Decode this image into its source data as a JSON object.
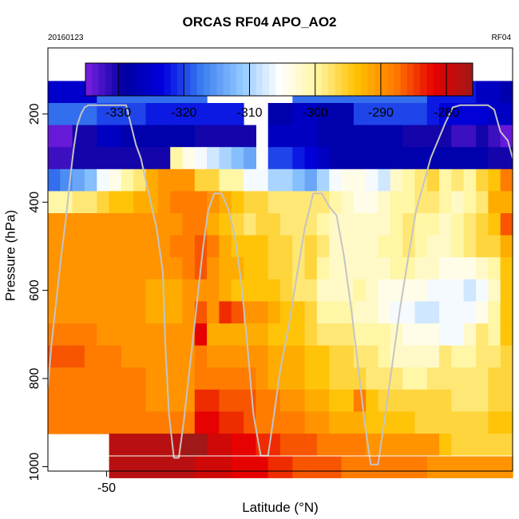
{
  "title": "ORCAS RF04 APO_AO2",
  "date": "20160123",
  "flight": "RF04",
  "colors": {
    "scale": [
      "#7b1fe3",
      "#0000a0",
      "#0000e0",
      "#3a7df0",
      "#8ec6ff",
      "#ffffff",
      "#fff5a0",
      "#ffc000",
      "#ff7a00",
      "#e60000",
      "#a01818"
    ]
  },
  "chart_data": {
    "type": "heatmap",
    "title": "ORCAS RF04 APO_AO2",
    "xlabel": "Latitude (°N)",
    "ylabel": "Pressure (hPa)",
    "xlim": [
      -54.8,
      -16.8
    ],
    "ylim": [
      1010,
      50
    ],
    "x_ticks": [
      -50
    ],
    "x_tick_labels": [
      "-50"
    ],
    "y_ticks": [
      200,
      400,
      600,
      800,
      1000
    ],
    "y_tick_labels": [
      "200",
      "400",
      "600",
      "800",
      "1000"
    ],
    "colorbar": {
      "range": [
        -335,
        -276
      ],
      "ticks": [
        -330,
        -320,
        -310,
        -300,
        -290,
        -280
      ],
      "tick_labels": [
        "-330",
        "-320",
        "-310",
        "-300",
        "-290",
        "-280"
      ]
    },
    "lat_start": -54.8,
    "lat_step": 1.0,
    "pressure_levels": [
      150,
      200,
      250,
      300,
      350,
      400,
      450,
      500,
      550,
      600,
      650,
      700,
      750,
      800,
      850,
      900,
      950,
      1000
    ],
    "rows": [
      [
        -325,
        -325,
        -325,
        -325,
        -318,
        -318,
        -318,
        -318,
        -318,
        -318,
        -318,
        -318,
        -318,
        null,
        null,
        null,
        null,
        null,
        null,
        null,
        -318,
        -318,
        -318,
        -318,
        -318,
        -318,
        -318,
        -318,
        -318,
        -318,
        -318,
        -322,
        -322,
        -322,
        -322,
        -326,
        -326,
        -328
      ],
      [
        -318,
        -318,
        -318,
        -318,
        -320,
        -320,
        -320,
        -320,
        -322,
        -322,
        -322,
        -322,
        -322,
        -322,
        -322,
        -322,
        null,
        null,
        -328,
        -328,
        -326,
        -326,
        -328,
        -328,
        -328,
        -320,
        -320,
        -320,
        -320,
        -320,
        -320,
        -322,
        -324,
        -324,
        -324,
        -324,
        -326,
        -326
      ],
      [
        -334,
        -334,
        -330,
        -330,
        -326,
        -326,
        -328,
        -328,
        -328,
        -328,
        -328,
        -328,
        -330,
        -330,
        -330,
        -330,
        -330,
        null,
        -326,
        -326,
        -326,
        -326,
        -328,
        -328,
        -328,
        -328,
        -328,
        -328,
        -328,
        -330,
        -330,
        -330,
        -330,
        -332,
        -332,
        -330,
        -332,
        -334
      ],
      [
        -332,
        -332,
        -330,
        -330,
        -330,
        -330,
        -330,
        -330,
        -330,
        -330,
        -300,
        -304,
        -306,
        -308,
        -310,
        -312,
        -314,
        null,
        -320,
        -320,
        -322,
        -324,
        -326,
        -328,
        -328,
        -328,
        -328,
        -328,
        -328,
        -328,
        -328,
        -328,
        -328,
        -328,
        -328,
        -328,
        -330,
        -330
      ],
      [
        -318,
        -316,
        -314,
        -312,
        -306,
        -304,
        -300,
        -298,
        -292,
        -290,
        -290,
        -290,
        -296,
        -296,
        -300,
        -300,
        -306,
        -306,
        -310,
        -310,
        -312,
        -314,
        -310,
        -306,
        -304,
        -304,
        -306,
        -308,
        -302,
        -300,
        -298,
        -296,
        -300,
        -298,
        -300,
        -296,
        -294,
        -288
      ],
      [
        -300,
        -300,
        -298,
        -298,
        -296,
        -294,
        -294,
        -292,
        -292,
        -290,
        -288,
        -288,
        -288,
        -290,
        -292,
        -294,
        -296,
        -296,
        -298,
        -298,
        -298,
        -298,
        -298,
        -300,
        -302,
        -304,
        -304,
        -302,
        -300,
        -300,
        -298,
        -298,
        -300,
        -302,
        -300,
        -298,
        -292,
        -292
      ],
      [
        -290,
        -290,
        -290,
        -290,
        -290,
        -290,
        -290,
        -290,
        -290,
        -290,
        -290,
        -288,
        -288,
        -292,
        -294,
        -296,
        -298,
        -296,
        -296,
        -298,
        -298,
        -298,
        -300,
        -302,
        -302,
        -302,
        -302,
        -302,
        -300,
        -298,
        -300,
        -300,
        -302,
        -300,
        -298,
        -296,
        -294,
        -286
      ],
      [
        -290,
        -290,
        -290,
        -290,
        -290,
        -290,
        -290,
        -290,
        -290,
        -290,
        -288,
        -288,
        -286,
        -288,
        -292,
        -294,
        -294,
        -294,
        -296,
        -296,
        -298,
        -296,
        -298,
        -302,
        -302,
        -302,
        -302,
        -300,
        -300,
        -298,
        -300,
        -302,
        -302,
        -300,
        -298,
        -296,
        -296,
        -292
      ],
      [
        -290,
        -290,
        -290,
        -290,
        -290,
        -290,
        -290,
        -290,
        -290,
        -290,
        -290,
        -288,
        -286,
        -290,
        -292,
        -292,
        -294,
        -294,
        -296,
        -296,
        -298,
        -296,
        -300,
        -302,
        -302,
        -302,
        -302,
        -302,
        -300,
        -300,
        -302,
        -302,
        -304,
        -304,
        -304,
        -302,
        -300,
        -294
      ],
      [
        -290,
        -290,
        -290,
        -290,
        -290,
        -290,
        -290,
        -290,
        -292,
        -292,
        -292,
        -290,
        -290,
        -290,
        -292,
        -294,
        -294,
        -294,
        -294,
        -296,
        -298,
        -298,
        -302,
        -302,
        -302,
        -300,
        -302,
        -304,
        -304,
        -304,
        -304,
        -306,
        -306,
        -306,
        -308,
        -306,
        -302,
        -294
      ],
      [
        -290,
        -290,
        -290,
        -290,
        -290,
        -290,
        -290,
        -290,
        -292,
        -292,
        -292,
        -290,
        -286,
        -290,
        -284,
        -286,
        -290,
        -290,
        -292,
        -294,
        -294,
        -296,
        -300,
        -300,
        -300,
        -302,
        -302,
        -304,
        -306,
        -306,
        -308,
        -308,
        -306,
        -306,
        -306,
        -304,
        -300,
        -294
      ],
      [
        -288,
        -288,
        -288,
        -288,
        -290,
        -290,
        -290,
        -290,
        -290,
        -290,
        -290,
        -290,
        -282,
        -292,
        -292,
        -292,
        -292,
        -292,
        -294,
        -294,
        -294,
        -296,
        -298,
        -298,
        -298,
        -300,
        -300,
        -300,
        -302,
        -304,
        -304,
        -304,
        -306,
        -306,
        -302,
        -298,
        -300,
        -294
      ],
      [
        -286,
        -286,
        -286,
        -288,
        -288,
        -288,
        -290,
        -290,
        -290,
        -290,
        -290,
        -290,
        -288,
        -290,
        -290,
        -290,
        -290,
        -290,
        -292,
        -292,
        -292,
        -294,
        -294,
        -296,
        -296,
        -298,
        -298,
        -300,
        -302,
        -302,
        -302,
        -302,
        -298,
        -300,
        -300,
        -298,
        -298,
        -296
      ],
      [
        -288,
        -288,
        -288,
        -288,
        -288,
        -288,
        -288,
        -288,
        -290,
        -290,
        -290,
        -290,
        -288,
        -288,
        -288,
        -288,
        -288,
        -290,
        -292,
        -292,
        -292,
        -294,
        -294,
        -296,
        -296,
        -296,
        -298,
        -298,
        -298,
        -300,
        -300,
        -298,
        -298,
        -298,
        -298,
        -298,
        -296,
        -296
      ],
      [
        -288,
        -288,
        -288,
        -288,
        -288,
        -288,
        -288,
        -288,
        -290,
        -290,
        -290,
        -290,
        -284,
        -284,
        -286,
        -286,
        -286,
        -288,
        -288,
        -290,
        -290,
        -292,
        -292,
        -294,
        -294,
        -288,
        -294,
        -296,
        -296,
        -296,
        -296,
        -296,
        -296,
        -298,
        -298,
        -298,
        -296,
        -296
      ],
      [
        -288,
        -288,
        -288,
        -288,
        -288,
        -288,
        -288,
        -288,
        -288,
        -288,
        -288,
        -288,
        -282,
        -282,
        -284,
        -284,
        -286,
        -288,
        -288,
        -288,
        -288,
        -290,
        -290,
        -292,
        -292,
        -292,
        -294,
        -294,
        -294,
        -294,
        -296,
        -296,
        -296,
        -296,
        -296,
        -296,
        -294,
        -294
      ],
      [
        null,
        null,
        null,
        null,
        null,
        -278,
        -278,
        -278,
        -278,
        -278,
        -278,
        -276,
        -276,
        -280,
        -280,
        -282,
        -282,
        -284,
        -284,
        -286,
        -286,
        -286,
        -288,
        -288,
        -288,
        -288,
        -290,
        -290,
        -290,
        -290,
        -290,
        -290,
        -294,
        -296,
        -296,
        -296,
        -296,
        -296
      ],
      [
        null,
        null,
        null,
        null,
        null,
        -278,
        -278,
        -278,
        -278,
        -278,
        -278,
        -278,
        -280,
        -280,
        -280,
        -282,
        -282,
        -282,
        -284,
        -284,
        -286,
        -286,
        -286,
        -286,
        -288,
        -288,
        -288,
        -288,
        -288,
        -288,
        -288,
        -290,
        -290,
        -290,
        -290,
        -290,
        -290,
        -290
      ]
    ],
    "flight_track": {
      "lat": [
        -54.8,
        -54.5,
        -54.1,
        -53.7,
        -53.3,
        -53.0,
        -52.7,
        -52.4,
        -52.1,
        -51.8,
        -51.5,
        -51.2,
        -50.7,
        -50.1,
        -49.7,
        -49.3,
        -48.8,
        -48.4,
        -48.0,
        -47.6,
        -47.2,
        -46.8,
        -46.4,
        -45.9,
        -45.4,
        -45.2,
        -44.9,
        -44.5,
        -44.1,
        -43.7,
        -43.3,
        -42.9,
        -42.5,
        -42.1,
        -41.7,
        -41.2,
        -40.6,
        -40.0,
        -39.5,
        -39.0,
        -38.5,
        -38.0,
        -37.4,
        -36.8,
        -36.3,
        -35.8,
        -35.1,
        -34.4,
        -33.8,
        -33.1,
        -32.4,
        -31.8,
        -31.2,
        -30.6,
        -30.0,
        -29.4,
        -28.9,
        -28.4,
        -27.8,
        -27.2,
        -26.6,
        -26.0,
        -25.3,
        -24.7,
        -24.1,
        -23.5,
        -22.9,
        -22.3,
        -21.7,
        -21.1,
        -20.5,
        -19.9,
        -19.3,
        -18.8,
        -18.3,
        -17.8,
        -17.2,
        -16.8
      ],
      "pressure": [
        820,
        720,
        620,
        520,
        430,
        350,
        280,
        225,
        200,
        185,
        180,
        180,
        180,
        180,
        180,
        180,
        180,
        180,
        225,
        270,
        300,
        350,
        400,
        460,
        560,
        720,
        880,
        980,
        980,
        900,
        800,
        700,
        600,
        500,
        420,
        380,
        380,
        420,
        480,
        580,
        720,
        880,
        975,
        975,
        880,
        780,
        680,
        560,
        460,
        380,
        380,
        410,
        430,
        520,
        640,
        780,
        900,
        995,
        995,
        880,
        760,
        640,
        520,
        420,
        360,
        300,
        260,
        220,
        185,
        180,
        180,
        180,
        180,
        180,
        190,
        240,
        260,
        300
      ]
    }
  }
}
